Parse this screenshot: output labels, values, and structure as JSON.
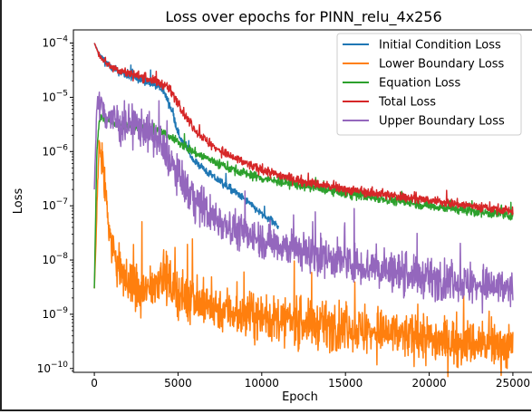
{
  "chart_data": {
    "type": "line",
    "title": "Loss over epochs for PINN_relu_4x256",
    "xlabel": "Epoch",
    "ylabel": "Loss",
    "xlim": [
      -1250,
      26250
    ],
    "ylim": [
      8.5e-11,
      0.000175
    ],
    "yscale": "log",
    "grid": false,
    "legend_position": "top-right",
    "xticks": [
      0,
      5000,
      10000,
      15000,
      20000,
      25000
    ],
    "yticks_exp": [
      -10,
      -9,
      -8,
      -7,
      -6,
      -5,
      -4
    ],
    "series": [
      {
        "name": "Initial Condition Loss",
        "color": "#1f77b4",
        "noise": 0.05,
        "points": [
          [
            0,
            0.0001
          ],
          [
            300,
            6e-05
          ],
          [
            1000,
            3.5e-05
          ],
          [
            2000,
            2.5e-05
          ],
          [
            3000,
            2e-05
          ],
          [
            3800,
            1.6e-05
          ],
          [
            4200,
            1.2e-05
          ],
          [
            4700,
            5e-06
          ],
          [
            5000,
            2.2e-06
          ],
          [
            5500,
            1.1e-06
          ],
          [
            6000,
            6.5e-07
          ],
          [
            7000,
            3.6e-07
          ],
          [
            8000,
            2.2e-07
          ],
          [
            9000,
            1.3e-07
          ],
          [
            10000,
            7e-08
          ],
          [
            11000,
            4.2e-08
          ]
        ]
      },
      {
        "name": "Lower Boundary Loss",
        "color": "#ff7f0e",
        "noise": 0.3,
        "points": [
          [
            0,
            3e-09
          ],
          [
            300,
            1.7e-06
          ],
          [
            600,
            3e-07
          ],
          [
            1000,
            2e-08
          ],
          [
            1500,
            7e-09
          ],
          [
            2000,
            3.5e-09
          ],
          [
            2800,
            2.2e-09
          ],
          [
            3500,
            3.2e-09
          ],
          [
            4000,
            6e-09
          ],
          [
            4500,
            3.5e-09
          ],
          [
            5000,
            2.4e-09
          ],
          [
            7000,
            1.4e-09
          ],
          [
            10000,
            8.5e-10
          ],
          [
            15000,
            5.5e-10
          ],
          [
            20000,
            3.5e-10
          ],
          [
            25000,
            2.5e-10
          ]
        ]
      },
      {
        "name": "Equation Loss",
        "color": "#2ca02c",
        "noise": 0.06,
        "points": [
          [
            0,
            3e-09
          ],
          [
            150,
            1e-06
          ],
          [
            300,
            3.8e-06
          ],
          [
            500,
            4.4e-06
          ],
          [
            1000,
            3.5e-06
          ],
          [
            2000,
            3e-06
          ],
          [
            3000,
            2.7e-06
          ],
          [
            4000,
            2.3e-06
          ],
          [
            5000,
            1.5e-06
          ],
          [
            6000,
            9.5e-07
          ],
          [
            8000,
            5e-07
          ],
          [
            10000,
            3.2e-07
          ],
          [
            15000,
            1.7e-07
          ],
          [
            20000,
            1e-07
          ],
          [
            25000,
            6.5e-08
          ]
        ]
      },
      {
        "name": "Total Loss",
        "color": "#d62728",
        "noise": 0.06,
        "points": [
          [
            0,
            0.0001
          ],
          [
            300,
            6e-05
          ],
          [
            1000,
            3.6e-05
          ],
          [
            2000,
            2.8e-05
          ],
          [
            3000,
            2.3e-05
          ],
          [
            4000,
            1.8e-05
          ],
          [
            4500,
            1.4e-05
          ],
          [
            5000,
            8e-06
          ],
          [
            5500,
            4.2e-06
          ],
          [
            6000,
            2.5e-06
          ],
          [
            7000,
            1.3e-06
          ],
          [
            8000,
            8.5e-07
          ],
          [
            10000,
            4.5e-07
          ],
          [
            12500,
            2.8e-07
          ],
          [
            15000,
            2e-07
          ],
          [
            20000,
            1.25e-07
          ],
          [
            25000,
            8e-08
          ]
        ]
      },
      {
        "name": "Upper Boundary Loss",
        "color": "#9467bd",
        "noise": 0.25,
        "points": [
          [
            0,
            2e-07
          ],
          [
            150,
            7e-06
          ],
          [
            400,
            7e-06
          ],
          [
            800,
            4.5e-06
          ],
          [
            1500,
            3.3e-06
          ],
          [
            2500,
            3e-06
          ],
          [
            3000,
            2.6e-06
          ],
          [
            3500,
            1.9e-06
          ],
          [
            4200,
            1e-06
          ],
          [
            5000,
            3.5e-07
          ],
          [
            6000,
            1.3e-07
          ],
          [
            7000,
            6.5e-08
          ],
          [
            9000,
            3e-08
          ],
          [
            12000,
            1.6e-08
          ],
          [
            15000,
            9e-09
          ],
          [
            20000,
            4.5e-09
          ],
          [
            25000,
            2.8e-09
          ]
        ]
      }
    ]
  }
}
